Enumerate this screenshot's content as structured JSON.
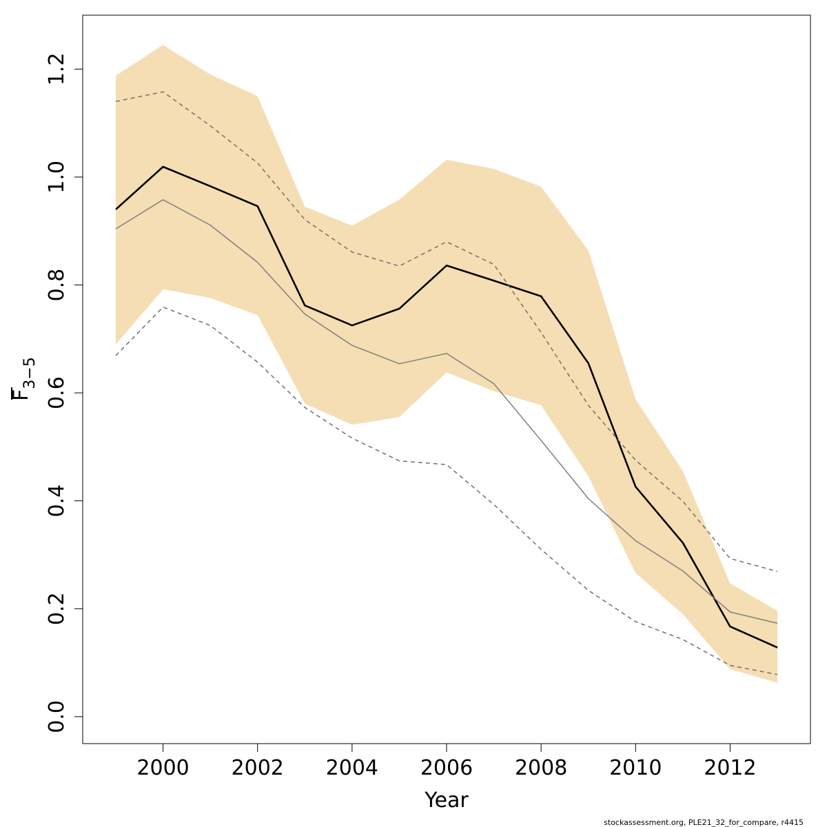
{
  "chart_data": {
    "type": "line",
    "title": "",
    "xlabel": "Year",
    "ylabel": {
      "main": "F",
      "subscript": "3−5"
    },
    "xlim": [
      1998.3,
      2013.7
    ],
    "ylim": [
      -0.05,
      1.3
    ],
    "x_ticks": [
      2000,
      2002,
      2004,
      2006,
      2008,
      2010,
      2012
    ],
    "x_tick_labels": [
      "2000",
      "2002",
      "2004",
      "2006",
      "2008",
      "2010",
      "2012"
    ],
    "y_ticks": [
      0.0,
      0.2,
      0.4,
      0.6,
      0.8,
      1.0,
      1.2
    ],
    "y_tick_labels": [
      "0.0",
      "0.2",
      "0.4",
      "0.6",
      "0.8",
      "1.0",
      "1.2"
    ],
    "grid": false,
    "x": [
      1999,
      2000,
      2001,
      2002,
      2003,
      2004,
      2005,
      2006,
      2007,
      2008,
      2009,
      2010,
      2011,
      2012,
      2013
    ],
    "band": {
      "color": "#f5deb3",
      "lower": [
        0.69,
        0.792,
        0.776,
        0.744,
        0.58,
        0.541,
        0.555,
        0.638,
        0.603,
        0.577,
        0.446,
        0.266,
        0.19,
        0.088,
        0.063
      ],
      "upper": [
        1.188,
        1.245,
        1.19,
        1.15,
        0.945,
        0.91,
        0.958,
        1.032,
        1.015,
        0.982,
        0.864,
        0.588,
        0.455,
        0.247,
        0.196
      ]
    },
    "series": [
      {
        "style": "solid-thick",
        "color": "#000000",
        "values": [
          0.94,
          1.019,
          0.983,
          0.946,
          0.762,
          0.725,
          0.756,
          0.836,
          0.808,
          0.779,
          0.655,
          0.426,
          0.322,
          0.167,
          0.128
        ]
      },
      {
        "style": "solid-thin",
        "color": "#7f7f7f",
        "values": [
          0.904,
          0.958,
          0.911,
          0.842,
          0.746,
          0.688,
          0.654,
          0.673,
          0.617,
          0.512,
          0.404,
          0.326,
          0.27,
          0.194,
          0.173
        ]
      },
      {
        "style": "dashed-upper",
        "color": "#6e6e6e",
        "values": [
          1.14,
          1.158,
          1.095,
          1.026,
          0.921,
          0.861,
          0.835,
          0.88,
          0.838,
          0.712,
          0.577,
          0.475,
          0.399,
          0.293,
          0.269
        ]
      },
      {
        "style": "dashed-lower",
        "color": "#6e6e6e",
        "values": [
          0.669,
          0.759,
          0.725,
          0.657,
          0.573,
          0.516,
          0.474,
          0.467,
          0.393,
          0.31,
          0.234,
          0.176,
          0.143,
          0.095,
          0.078
        ]
      }
    ]
  },
  "footer": {
    "text": "stockassessment.org, PLE21_32_for_compare, r4415"
  }
}
